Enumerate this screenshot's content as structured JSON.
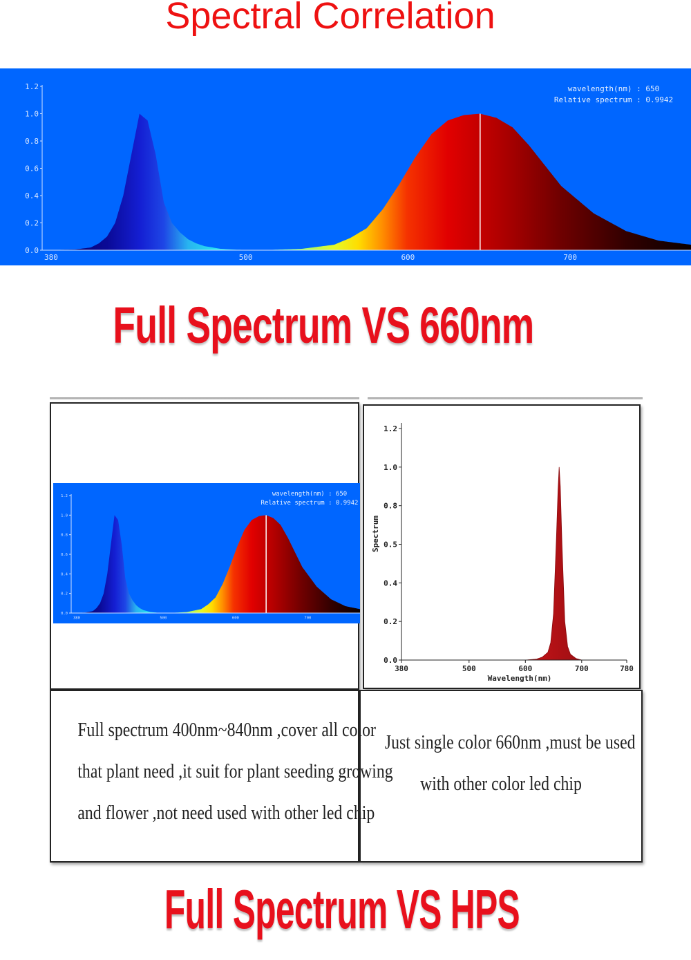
{
  "header": {
    "title": "Spectral Correlation",
    "headline_660": "Full Spectrum VS 660nm",
    "headline_hps": "Full Spectrum VS HPS"
  },
  "colors": {
    "title_red": "#ee1111",
    "chart_background": "#0066ff",
    "headline_red": "#e8101c",
    "mono_fill": "#c8141c"
  },
  "chart_data": [
    {
      "type": "area",
      "background": "#0066ff",
      "x_ticks": [
        "380",
        "500",
        "600",
        "700"
      ],
      "y_ticks": [
        "0.0",
        "0.2",
        "0.4",
        "0.6",
        "0.8",
        "1.0",
        "1.2"
      ],
      "xlim": [
        380,
        780
      ],
      "ylim": [
        0,
        1.2
      ],
      "x": [
        380,
        400,
        410,
        415,
        420,
        425,
        430,
        435,
        440,
        445,
        450,
        455,
        460,
        465,
        470,
        475,
        480,
        490,
        500,
        520,
        540,
        560,
        570,
        580,
        590,
        600,
        610,
        620,
        630,
        640,
        650,
        660,
        670,
        680,
        690,
        700,
        720,
        740,
        760,
        780
      ],
      "y": [
        0,
        0.005,
        0.02,
        0.05,
        0.1,
        0.2,
        0.4,
        0.7,
        1.0,
        0.95,
        0.7,
        0.35,
        0.2,
        0.13,
        0.08,
        0.05,
        0.03,
        0.01,
        0.003,
        0.002,
        0.01,
        0.04,
        0.09,
        0.16,
        0.3,
        0.48,
        0.68,
        0.85,
        0.95,
        0.99,
        1.0,
        0.97,
        0.9,
        0.77,
        0.62,
        0.47,
        0.27,
        0.14,
        0.07,
        0.04
      ],
      "cursor": {
        "x": 650,
        "wavelength_label": "wavelength(nm) : 650",
        "relative_label": "Relative spectrum : 0.9942"
      }
    },
    {
      "type": "area",
      "background": "#0066ff",
      "x_ticks": [
        "380",
        "500",
        "600",
        "700"
      ],
      "y_ticks": [
        "0.0",
        "0.2",
        "0.4",
        "0.6",
        "0.8",
        "1.0",
        "1.2"
      ],
      "xlim": [
        380,
        780
      ],
      "ylim": [
        0,
        1.2
      ],
      "x": [
        380,
        400,
        410,
        415,
        420,
        425,
        430,
        435,
        440,
        445,
        450,
        455,
        460,
        465,
        470,
        475,
        480,
        490,
        500,
        520,
        540,
        560,
        570,
        580,
        590,
        600,
        610,
        620,
        630,
        640,
        650,
        660,
        670,
        680,
        690,
        700,
        720,
        740,
        760,
        780
      ],
      "y": [
        0,
        0.005,
        0.02,
        0.05,
        0.1,
        0.2,
        0.4,
        0.7,
        1.0,
        0.95,
        0.7,
        0.35,
        0.2,
        0.13,
        0.08,
        0.05,
        0.03,
        0.01,
        0.003,
        0.002,
        0.01,
        0.04,
        0.09,
        0.16,
        0.3,
        0.48,
        0.68,
        0.85,
        0.95,
        0.99,
        1.0,
        0.97,
        0.9,
        0.77,
        0.62,
        0.47,
        0.27,
        0.14,
        0.07,
        0.04
      ],
      "cursor": {
        "x": 650,
        "wavelength_label": "wavelength(nm) : 650",
        "relative_label": "Relative spectrum : 0.9942"
      }
    },
    {
      "type": "area",
      "background": "#ffffff",
      "x_ticks": [
        "380",
        "500",
        "600",
        "700",
        "780"
      ],
      "y_ticks": [
        "0.0",
        "0.2",
        "0.4",
        "0.5",
        "0.8",
        "1.0",
        "1.2"
      ],
      "xlim": [
        380,
        780
      ],
      "ylim": [
        0,
        1.2
      ],
      "xlabel": "Wavelength(nm)",
      "ylabel": "Spectrum",
      "x": [
        380,
        600,
        620,
        630,
        640,
        645,
        650,
        655,
        658,
        660,
        662,
        665,
        670,
        675,
        680,
        690,
        700,
        780
      ],
      "y": [
        0,
        0,
        0.005,
        0.015,
        0.04,
        0.09,
        0.24,
        0.62,
        0.88,
        1.0,
        0.9,
        0.6,
        0.2,
        0.07,
        0.03,
        0.008,
        0,
        0
      ]
    }
  ],
  "descriptions": {
    "full_spectrum": [
      "Full spectrum 400nm~840nm ,cover all color",
      "that plant need ,it suit for plant seeding growing",
      "and flower ,not need used with other led chip"
    ],
    "single_color": [
      "Just single color 660nm ,must be used",
      "with other color led chip"
    ]
  }
}
